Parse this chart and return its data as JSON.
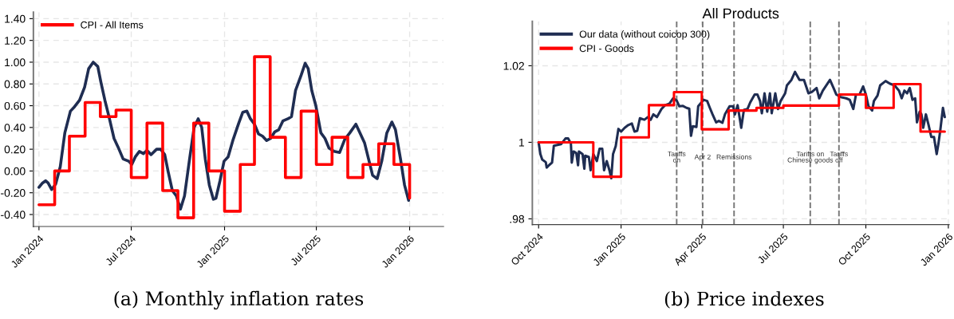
{
  "chart_data": [
    {
      "type": "line",
      "annotations": [
        "(a) Monthly inflation rates"
      ],
      "xlim": [
        "2023-12-21",
        "2026-03-09"
      ],
      "xticks": [
        {
          "value": "2024-01-01",
          "label": "Jan 2024"
        },
        {
          "value": "2024-07-01",
          "label": "Jul 2024"
        },
        {
          "value": "2025-01-01",
          "label": "Jan 2025"
        },
        {
          "value": "2025-07-01",
          "label": "Jul 2025"
        },
        {
          "value": "2026-01-01",
          "label": "Jan 2026"
        }
      ],
      "ylim": [
        -0.51,
        1.46
      ],
      "yticks": [
        {
          "value": -0.4,
          "label": "-0.40"
        },
        {
          "value": -0.2,
          "label": "-0.20"
        },
        {
          "value": 0,
          "label": "0.00"
        },
        {
          "value": 0.2,
          "label": "0.20"
        },
        {
          "value": 0.4,
          "label": "0.40"
        },
        {
          "value": 0.6,
          "label": "0.60"
        },
        {
          "value": 0.8,
          "label": "0.80"
        },
        {
          "value": 1.0,
          "label": "1.00"
        },
        {
          "value": 1.2,
          "label": "1.20"
        },
        {
          "value": 1.4,
          "label": "1.40"
        }
      ],
      "grid": true,
      "legend": "top left",
      "line_style": "solid",
      "series": [
        {
          "type": "line",
          "color": "#1f2d52",
          "x": [
            "2024-01-01",
            "2024-01-08",
            "2024-01-14",
            "2024-01-19",
            "2024-01-26",
            "2024-02-03",
            "2024-02-12",
            "2024-02-21",
            "2024-03-03",
            "2024-03-11",
            "2024-03-21",
            "2024-03-31",
            "2024-04-08",
            "2024-04-17",
            "2024-04-26",
            "2024-05-02",
            "2024-05-10",
            "2024-05-18",
            "2024-05-28",
            "2024-06-05",
            "2024-06-15",
            "2024-06-26",
            "2024-07-02",
            "2024-07-09",
            "2024-07-17",
            "2024-07-25",
            "2024-08-01",
            "2024-08-09",
            "2024-08-20",
            "2024-08-28",
            "2024-09-05",
            "2024-09-12",
            "2024-09-20",
            "2024-09-28",
            "2024-10-06",
            "2024-10-14",
            "2024-10-24",
            "2024-11-02",
            "2024-11-10",
            "2024-11-17",
            "2024-11-24",
            "2024-12-02",
            "2024-12-10",
            "2024-12-15",
            "2024-12-23",
            "2024-12-31",
            "2025-01-08",
            "2025-01-18",
            "2025-01-29",
            "2025-02-06",
            "2025-02-14",
            "2025-02-21",
            "2025-03-01",
            "2025-03-09",
            "2025-03-17",
            "2025-03-25",
            "2025-04-02",
            "2025-04-10",
            "2025-04-18",
            "2025-04-26",
            "2025-05-06",
            "2025-05-13",
            "2025-05-21",
            "2025-06-01",
            "2025-06-09",
            "2025-06-15",
            "2025-06-22",
            "2025-06-30",
            "2025-07-10",
            "2025-07-18",
            "2025-07-26",
            "2025-08-05",
            "2025-08-16",
            "2025-08-26",
            "2025-09-05",
            "2025-09-17",
            "2025-09-26",
            "2025-10-04",
            "2025-10-12",
            "2025-10-20",
            "2025-10-29",
            "2025-11-07",
            "2025-11-17",
            "2025-11-27",
            "2025-12-04",
            "2025-12-14",
            "2025-12-22",
            "2025-12-30"
          ],
          "values": [
            -0.15,
            -0.11,
            -0.09,
            -0.11,
            -0.17,
            -0.12,
            0.04,
            0.35,
            0.55,
            0.59,
            0.65,
            0.77,
            0.94,
            1.0,
            0.96,
            0.82,
            0.65,
            0.5,
            0.3,
            0.22,
            0.11,
            0.09,
            0.06,
            0.13,
            0.18,
            0.16,
            0.19,
            0.15,
            0.2,
            0.2,
            0.15,
            -0.01,
            -0.18,
            -0.23,
            -0.35,
            -0.23,
            0.11,
            0.4,
            0.48,
            0.4,
            0.11,
            -0.13,
            -0.26,
            -0.25,
            -0.09,
            0.09,
            0.13,
            0.29,
            0.44,
            0.54,
            0.55,
            0.48,
            0.43,
            0.34,
            0.32,
            0.28,
            0.3,
            0.36,
            0.38,
            0.46,
            0.48,
            0.5,
            0.74,
            0.88,
            0.99,
            0.94,
            0.74,
            0.6,
            0.35,
            0.3,
            0.21,
            0.18,
            0.17,
            0.29,
            0.35,
            0.43,
            0.34,
            0.26,
            0.11,
            -0.04,
            -0.07,
            0.09,
            0.35,
            0.45,
            0.38,
            0.11,
            -0.13,
            -0.27
          ]
        },
        {
          "type": "step",
          "name": "CPI - All Items",
          "color": "#ff0000",
          "x": [
            "2024-01-01",
            "2024-02-01",
            "2024-03-01",
            "2024-04-01",
            "2024-05-01",
            "2024-06-01",
            "2024-07-01",
            "2024-08-01",
            "2024-09-01",
            "2024-10-01",
            "2024-11-01",
            "2024-12-01",
            "2025-01-01",
            "2025-02-01",
            "2025-03-01",
            "2025-04-01",
            "2025-05-01",
            "2025-06-01",
            "2025-07-01",
            "2025-08-01",
            "2025-09-01",
            "2025-10-01",
            "2025-11-01",
            "2025-12-01",
            "2026-01-01"
          ],
          "values": [
            -0.31,
            0.0,
            0.32,
            0.63,
            0.5,
            0.56,
            -0.06,
            0.44,
            -0.18,
            -0.43,
            0.44,
            0.0,
            -0.37,
            0.06,
            1.05,
            0.31,
            -0.06,
            0.55,
            0.06,
            0.31,
            -0.06,
            0.06,
            0.25,
            0.06,
            -0.25
          ]
        }
      ]
    },
    {
      "type": "line",
      "title": "All Products",
      "annotations": [
        "(b) Price indexes"
      ],
      "xlim": [
        "2024-09-24",
        "2026-01-02"
      ],
      "xticks": [
        {
          "value": "2024-10-01",
          "label": "Oct 2024"
        },
        {
          "value": "2025-01-01",
          "label": "Jan 2025"
        },
        {
          "value": "2025-04-01",
          "label": "Apr 2025"
        },
        {
          "value": "2025-07-01",
          "label": "Jul 2025"
        },
        {
          "value": "2025-10-01",
          "label": "Oct 2025"
        },
        {
          "value": "2026-01-01",
          "label": "Jan 2026"
        }
      ],
      "ylim": [
        0.9785,
        1.0316
      ],
      "yticks": [
        {
          "value": 0.98,
          "label": ".98"
        },
        {
          "value": 1,
          "label": "1"
        },
        {
          "value": 1.02,
          "label": "1.02"
        }
      ],
      "grid": true,
      "legend": "top left",
      "line_style": "solid",
      "ref_lines": [
        {
          "axis": "x",
          "value": "2025-03-04",
          "label": "Tariffs\non",
          "color": "#777777",
          "line_style": "dashed"
        },
        {
          "axis": "x",
          "value": "2025-04-02",
          "label": "Apr 2",
          "color": "#777777",
          "line_style": "dashed"
        },
        {
          "axis": "x",
          "value": "2025-05-07",
          "label": "Remissions",
          "color": "#777777",
          "line_style": "dashed"
        },
        {
          "axis": "x",
          "value": "2025-07-31",
          "label": "Tariffs on\nChinese goods",
          "color": "#777777",
          "line_style": "dashed"
        },
        {
          "axis": "x",
          "value": "2025-09-01",
          "label": "Tariffs\noff",
          "color": "#777777",
          "line_style": "dashed"
        }
      ],
      "series": [
        {
          "type": "line",
          "name": "Our data (without coicop 300)",
          "color": "#1f2d52",
          "x": [
            "2024-10-01",
            "2024-10-03",
            "2024-10-05",
            "2024-10-09",
            "2024-10-10",
            "2024-10-13",
            "2024-10-16",
            "2024-10-18",
            "2024-10-22",
            "2024-10-26",
            "2024-10-31",
            "2024-11-03",
            "2024-11-06",
            "2024-11-07",
            "2024-11-09",
            "2024-11-12",
            "2024-11-14",
            "2024-11-15",
            "2024-11-19",
            "2024-11-21",
            "2024-11-22",
            "2024-11-26",
            "2024-11-28",
            "2024-12-01",
            "2024-12-05",
            "2024-12-08",
            "2024-12-11",
            "2024-12-13",
            "2024-12-16",
            "2024-12-19",
            "2024-12-21",
            "2024-12-23",
            "2024-12-26",
            "2024-12-29",
            "2025-01-01",
            "2025-01-05",
            "2025-01-09",
            "2025-01-13",
            "2025-01-16",
            "2025-01-19",
            "2025-01-22",
            "2025-01-27",
            "2025-01-31",
            "2025-02-03",
            "2025-02-06",
            "2025-02-10",
            "2025-02-15",
            "2025-02-19",
            "2025-02-24",
            "2025-02-28",
            "2025-03-04",
            "2025-03-07",
            "2025-03-11",
            "2025-03-15",
            "2025-03-18",
            "2025-03-20",
            "2025-03-22",
            "2025-03-26",
            "2025-03-28",
            "2025-04-03",
            "2025-04-07",
            "2025-04-10",
            "2025-04-13",
            "2025-04-17",
            "2025-04-20",
            "2025-04-24",
            "2025-04-27",
            "2025-05-02",
            "2025-05-06",
            "2025-05-08",
            "2025-05-11",
            "2025-05-15",
            "2025-05-18",
            "2025-05-22",
            "2025-05-25",
            "2025-05-30",
            "2025-06-02",
            "2025-06-05",
            "2025-06-07",
            "2025-06-10",
            "2025-06-13",
            "2025-06-16",
            "2025-06-18",
            "2025-06-22",
            "2025-06-25",
            "2025-06-28",
            "2025-07-03",
            "2025-07-05",
            "2025-07-10",
            "2025-07-14",
            "2025-07-19",
            "2025-07-24",
            "2025-07-29",
            "2025-08-02",
            "2025-08-07",
            "2025-08-10",
            "2025-08-14",
            "2025-08-18",
            "2025-08-22",
            "2025-08-26",
            "2025-08-29",
            "2025-09-03",
            "2025-09-09",
            "2025-09-13",
            "2025-09-17",
            "2025-09-20",
            "2025-09-24",
            "2025-09-28",
            "2025-10-01",
            "2025-10-04",
            "2025-10-08",
            "2025-10-10",
            "2025-10-14",
            "2025-10-17",
            "2025-10-23",
            "2025-10-28",
            "2025-11-02",
            "2025-11-07",
            "2025-11-10",
            "2025-11-13",
            "2025-11-16",
            "2025-11-19",
            "2025-11-22",
            "2025-11-25",
            "2025-11-27",
            "2025-11-30",
            "2025-12-02",
            "2025-12-04",
            "2025-12-07",
            "2025-12-10",
            "2025-12-13",
            "2025-12-16",
            "2025-12-19",
            "2025-12-21",
            "2025-12-23",
            "2025-12-26",
            "2025-12-28"
          ],
          "values": [
            1.0,
            0.9969,
            0.9955,
            0.9948,
            0.9934,
            0.9941,
            0.9947,
            0.9991,
            0.9993,
            0.9995,
            1.001,
            1.001,
            0.9997,
            0.9947,
            0.9976,
            0.9972,
            0.994,
            0.9976,
            0.9969,
            0.9931,
            0.9965,
            0.9962,
            0.9927,
            0.9969,
            0.9951,
            0.9983,
            0.9983,
            0.9927,
            0.9951,
            0.9927,
            0.9906,
            0.9969,
            0.999,
            1.0035,
            1.0028,
            1.0038,
            1.0045,
            1.0049,
            1.0028,
            1.003,
            1.0063,
            1.0059,
            1.0066,
            1.0059,
            1.0073,
            1.0066,
            1.0087,
            1.0097,
            1.0101,
            1.0115,
            1.0109,
            1.0094,
            1.0095,
            1.009,
            1.0088,
            1.0017,
            1.0042,
            1.004,
            1.0094,
            1.0111,
            1.0108,
            1.009,
            1.0073,
            1.0052,
            1.0056,
            1.0051,
            1.0074,
            1.0094,
            1.0094,
            1.0073,
            1.0097,
            1.0038,
            1.0085,
            1.0087,
            1.0104,
            1.0125,
            1.0125,
            1.0108,
            1.0076,
            1.0128,
            1.008,
            1.0128,
            1.0076,
            1.0128,
            1.0087,
            1.0108,
            1.0128,
            1.0149,
            1.0163,
            1.0184,
            1.0163,
            1.0163,
            1.0128,
            1.0132,
            1.0142,
            1.0115,
            1.0135,
            1.0149,
            1.0163,
            1.0142,
            1.0125,
            1.0118,
            1.0115,
            1.0111,
            1.0087,
            1.0125,
            1.0125,
            1.0146,
            1.0125,
            1.0094,
            1.0083,
            1.0108,
            1.0122,
            1.0149,
            1.016,
            1.0153,
            1.0149,
            1.0135,
            1.0115,
            1.0135,
            1.0128,
            1.0142,
            1.0111,
            1.0115,
            1.0052,
            1.008,
            1.0073,
            1.0038,
            1.0073,
            1.0045,
            1.0014,
            1.0014,
            0.9969,
            0.9997,
            1.0031,
            1.009,
            1.0066
          ]
        },
        {
          "type": "step",
          "name": "CPI - Goods",
          "color": "#ff0000",
          "x": [
            "2024-10-01",
            "2024-11-01",
            "2024-12-01",
            "2025-01-01",
            "2025-02-01",
            "2025-03-01",
            "2025-04-01",
            "2025-05-01",
            "2025-06-01",
            "2025-07-01",
            "2025-08-01",
            "2025-09-01",
            "2025-10-01",
            "2025-11-01",
            "2025-12-01",
            "2025-12-28"
          ],
          "values": [
            1.0,
            1.0,
            0.991,
            1.0013,
            1.0097,
            1.0131,
            1.0034,
            1.0083,
            1.009,
            1.0096,
            1.0096,
            1.0125,
            1.009,
            1.0152,
            1.0028,
            1.0028
          ]
        }
      ]
    }
  ]
}
